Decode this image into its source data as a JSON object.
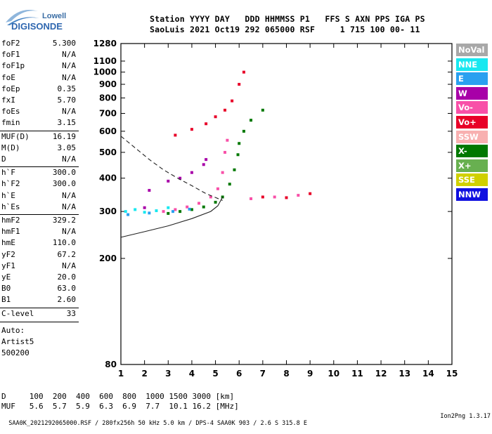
{
  "logo": {
    "line1": "Lowell",
    "line2": "DIGISONDE"
  },
  "header": {
    "line1": "Station YYYY DAY   DDD HHMMSS P1   FFS S AXN PPS IGA PS",
    "line2": "SaoLuis 2021 Oct19 292 065000 RSF     1 715 100 00- 11"
  },
  "params": [
    {
      "name": "foF2",
      "value": "5.300"
    },
    {
      "name": "foF1",
      "value": "N/A"
    },
    {
      "name": "foF1p",
      "value": "N/A"
    },
    {
      "name": "foE",
      "value": "N/A"
    },
    {
      "name": "foEp",
      "value": "0.35"
    },
    {
      "name": "fxI",
      "value": "5.70"
    },
    {
      "name": "foEs",
      "value": "N/A"
    },
    {
      "name": "fmin",
      "value": "3.15"
    },
    {
      "name": "MUF(D)",
      "value": "16.19"
    },
    {
      "name": "M(D)",
      "value": "3.05"
    },
    {
      "name": "D",
      "value": "N/A"
    },
    {
      "name": "h`F",
      "value": "300.0"
    },
    {
      "name": "h`F2",
      "value": "300.0"
    },
    {
      "name": "h`E",
      "value": "N/A"
    },
    {
      "name": "h`Es",
      "value": "N/A"
    },
    {
      "name": "hmF2",
      "value": "329.2"
    },
    {
      "name": "hmF1",
      "value": "N/A"
    },
    {
      "name": "hmE",
      "value": "110.0"
    },
    {
      "name": "yF2",
      "value": "67.2"
    },
    {
      "name": "yF1",
      "value": "N/A"
    },
    {
      "name": "yE",
      "value": "20.0"
    },
    {
      "name": "B0",
      "value": "63.0"
    },
    {
      "name": "B1",
      "value": "2.60"
    },
    {
      "name": "C-level",
      "value": "33"
    }
  ],
  "auto": {
    "label": "Auto:",
    "artist": "Artist5",
    "version": "500200"
  },
  "legend": [
    {
      "label": "NoVal",
      "color": "#a8a8a8"
    },
    {
      "label": "NNE",
      "color": "#18e8f0"
    },
    {
      "label": "E",
      "color": "#2aa0f0"
    },
    {
      "label": "W",
      "color": "#a800a8"
    },
    {
      "label": "Vo-",
      "color": "#f850a8"
    },
    {
      "label": "Vo+",
      "color": "#e80028"
    },
    {
      "label": "SSW",
      "color": "#f8b0b0"
    },
    {
      "label": "X-",
      "color": "#007800"
    },
    {
      "label": "X+",
      "color": "#68b050"
    },
    {
      "label": "SSE",
      "color": "#d0d000"
    },
    {
      "label": "NNW",
      "color": "#1010e0"
    }
  ],
  "bottom_table": {
    "row1": "D     100  200  400  600  800  1000 1500 3000 [km]",
    "row2": "MUF   5.6  5.7  5.9  6.3  6.9  7.7  10.1 16.2 [MHz]"
  },
  "footer": {
    "left": "SAA0K_2021292065000.RSF / 280fx256h 50 kHz 5.0 km / DPS-4 SAA0K 903 / 2.6 S 315.8 E",
    "right": "Ion2Png 1.3.17"
  },
  "chart_data": {
    "type": "scatter",
    "title": "",
    "xlabel": "",
    "ylabel": "",
    "xlim": [
      1,
      15
    ],
    "ylim": [
      80,
      1280
    ],
    "y_scale": "log",
    "x_ticks": [
      1,
      2,
      3,
      4,
      5,
      6,
      7,
      8,
      9,
      10,
      11,
      12,
      13,
      14,
      15
    ],
    "y_ticks": [
      80,
      200,
      300,
      400,
      500,
      600,
      700,
      800,
      900,
      1000,
      1100,
      1280
    ],
    "series": [
      {
        "color_key": "X-",
        "points": [
          [
            3.0,
            295
          ],
          [
            3.5,
            300
          ],
          [
            4.0,
            305
          ],
          [
            4.5,
            312
          ],
          [
            5.0,
            325
          ],
          [
            5.3,
            340
          ],
          [
            5.6,
            380
          ],
          [
            5.8,
            430
          ],
          [
            5.95,
            490
          ],
          [
            6.0,
            540
          ],
          [
            6.2,
            600
          ],
          [
            6.5,
            660
          ],
          [
            7.0,
            720
          ]
        ]
      },
      {
        "color_key": "Vo-",
        "points": [
          [
            2.8,
            300
          ],
          [
            3.3,
            305
          ],
          [
            3.8,
            312
          ],
          [
            4.3,
            322
          ],
          [
            4.8,
            340
          ],
          [
            5.1,
            365
          ],
          [
            5.3,
            420
          ],
          [
            5.4,
            500
          ],
          [
            5.5,
            555
          ],
          [
            6.5,
            335
          ],
          [
            7.5,
            340
          ],
          [
            8.5,
            345
          ]
        ]
      },
      {
        "color_key": "W",
        "points": [
          [
            2.0,
            310
          ],
          [
            3.0,
            390
          ],
          [
            3.5,
            400
          ],
          [
            4.0,
            420
          ],
          [
            4.5,
            450
          ],
          [
            2.2,
            360
          ],
          [
            4.6,
            470
          ]
        ]
      },
      {
        "color_key": "NNE",
        "points": [
          [
            1.2,
            300
          ],
          [
            1.6,
            305
          ],
          [
            2.0,
            298
          ],
          [
            2.5,
            302
          ],
          [
            3.0,
            310
          ]
        ]
      },
      {
        "color_key": "E",
        "points": [
          [
            1.3,
            292
          ],
          [
            2.2,
            296
          ],
          [
            3.2,
            300
          ],
          [
            3.9,
            306
          ]
        ]
      },
      {
        "color_key": "Vo+",
        "points": [
          [
            3.3,
            580
          ],
          [
            4.0,
            610
          ],
          [
            4.6,
            640
          ],
          [
            5.0,
            680
          ],
          [
            5.4,
            720
          ],
          [
            5.7,
            780
          ],
          [
            6.0,
            900
          ],
          [
            6.2,
            1000
          ],
          [
            7.0,
            340
          ],
          [
            8.0,
            338
          ],
          [
            9.0,
            350
          ]
        ]
      }
    ],
    "traces": [
      {
        "name": "virtual_height_profile",
        "style": "solid",
        "points": [
          [
            1.0,
            240
          ],
          [
            2.0,
            252
          ],
          [
            3.0,
            265
          ],
          [
            4.0,
            282
          ],
          [
            4.8,
            300
          ],
          [
            5.1,
            315
          ],
          [
            5.3,
            340
          ]
        ]
      },
      {
        "name": "electron_density_profile",
        "style": "dashed",
        "points": [
          [
            1.0,
            575
          ],
          [
            1.6,
            520
          ],
          [
            2.2,
            470
          ],
          [
            2.8,
            430
          ],
          [
            3.4,
            400
          ],
          [
            4.0,
            375
          ],
          [
            4.6,
            350
          ],
          [
            5.3,
            330
          ]
        ]
      }
    ]
  }
}
